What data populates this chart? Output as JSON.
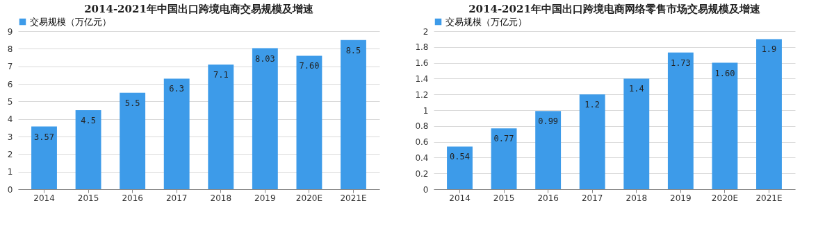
{
  "chart_data": [
    {
      "type": "bar",
      "title": "2014-2021年中国出口跨境电商交易规模及增速",
      "categories": [
        "2014",
        "2015",
        "2016",
        "2017",
        "2018",
        "2019",
        "2020E",
        "2021E"
      ],
      "series": [
        {
          "name": "交易规模（万亿元）",
          "color": "#3d9be9",
          "values": [
            3.57,
            4.5,
            5.5,
            6.3,
            7.1,
            8.03,
            7.6,
            8.5
          ],
          "value_labels": [
            "3.57",
            "4.5",
            "5.5",
            "6.3",
            "7.1",
            "8.03",
            "7.60",
            "8.5"
          ]
        }
      ],
      "ylim": [
        0,
        9
      ],
      "yticks": [
        0,
        1,
        2,
        3,
        4,
        5,
        6,
        7,
        8,
        9
      ],
      "grid": "y",
      "legend": "top"
    },
    {
      "type": "bar",
      "title": "2014-2021年中国出口跨境电商网络零售市场交易规模及增速",
      "categories": [
        "2014",
        "2015",
        "2016",
        "2017",
        "2018",
        "2019",
        "2020E",
        "2021E"
      ],
      "series": [
        {
          "name": "交易规模（万亿元）",
          "color": "#3d9be9",
          "values": [
            0.54,
            0.77,
            0.99,
            1.2,
            1.4,
            1.73,
            1.6,
            1.9
          ],
          "value_labels": [
            "0.54",
            "0.77",
            "0.99",
            "1.2",
            "1.4",
            "1.73",
            "1.60",
            "1.9"
          ]
        }
      ],
      "ylim": [
        0,
        2
      ],
      "yticks": [
        0,
        0.2,
        0.4,
        0.6,
        0.8,
        1,
        1.2,
        1.4,
        1.6,
        1.8,
        2
      ],
      "grid": "y",
      "legend": "top"
    }
  ]
}
